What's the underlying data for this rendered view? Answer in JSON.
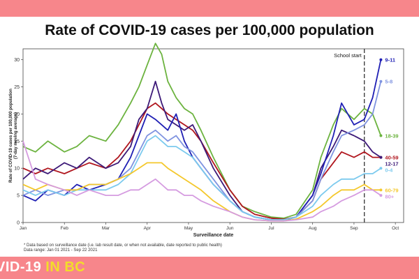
{
  "title": "Rate of COVID-19 cases per 100,000 population",
  "footnotes": [
    "* Data based on surveillance date (i.e. lab result date, or when not available, date reported to public health)",
    "Data range: Jan 01 2021 - Sep 22 2021"
  ],
  "brand": {
    "prefix": "VID-19",
    "suffix": " IN BC"
  },
  "colors": {
    "band": "#f7868b",
    "brand_accent": "#f2dd2a"
  },
  "chart_data": {
    "type": "line",
    "title": "Rate of COVID-19 cases per 100,000 population",
    "xlabel": "Surveillance date",
    "ylabel_lines": [
      "Rate of COVID-19 cases per 100,000 population",
      "(7-day moving average)"
    ],
    "xlim": [
      0,
      9.2
    ],
    "ylim": [
      0,
      32
    ],
    "yticks": [
      0,
      5,
      10,
      15,
      20,
      25,
      30
    ],
    "month_ticks": [
      {
        "label": "Jan",
        "x": 0
      },
      {
        "label": "Feb",
        "x": 1
      },
      {
        "label": "Mar",
        "x": 2
      },
      {
        "label": "Apr",
        "x": 3
      },
      {
        "label": "May",
        "x": 4
      },
      {
        "label": "Jun",
        "x": 5
      },
      {
        "label": "Jul",
        "x": 6
      },
      {
        "label": "Aug",
        "x": 7
      },
      {
        "label": "Sep",
        "x": 8
      },
      {
        "label": "Oct",
        "x": 9
      }
    ],
    "annotation": {
      "label": "School start",
      "x": 8.25
    },
    "series": [
      {
        "name": "18-39",
        "color": "#6cb33f",
        "label": "18-39",
        "x": [
          0,
          0.3,
          0.6,
          1,
          1.3,
          1.6,
          2,
          2.3,
          2.6,
          2.8,
          3,
          3.2,
          3.35,
          3.5,
          3.7,
          3.9,
          4.1,
          4.3,
          4.6,
          5,
          5.3,
          5.6,
          6,
          6.3,
          6.6,
          7,
          7.2,
          7.5,
          7.7,
          8,
          8.25,
          8.45,
          8.65
        ],
        "values": [
          14,
          13,
          15,
          13,
          14,
          16,
          15,
          18,
          22,
          25,
          29,
          33,
          31,
          26,
          23,
          21,
          20,
          17,
          12,
          6,
          3,
          2,
          1,
          0.8,
          1.5,
          6,
          12,
          18,
          21,
          19,
          21,
          20,
          16
        ]
      },
      {
        "name": "40-59",
        "color": "#b0161e",
        "label": "40-59",
        "x": [
          0,
          0.3,
          0.6,
          1,
          1.3,
          1.6,
          2,
          2.3,
          2.6,
          2.8,
          3,
          3.2,
          3.35,
          3.5,
          3.7,
          3.9,
          4.1,
          4.3,
          4.6,
          5,
          5.3,
          5.6,
          6,
          6.3,
          6.6,
          7,
          7.2,
          7.5,
          7.7,
          8,
          8.25,
          8.45,
          8.65
        ],
        "values": [
          10,
          9,
          10,
          9,
          10,
          11,
          10,
          12,
          15,
          18,
          21,
          22,
          21,
          20,
          19,
          18,
          17,
          15,
          11,
          6,
          3,
          1.5,
          0.8,
          0.6,
          1,
          4,
          8,
          11,
          13,
          12,
          13,
          12,
          12
        ]
      },
      {
        "name": "12-17",
        "color": "#3d1a78",
        "label": "12-17",
        "x": [
          0,
          0.3,
          0.6,
          1,
          1.3,
          1.6,
          2,
          2.3,
          2.6,
          2.8,
          3,
          3.2,
          3.35,
          3.5,
          3.7,
          3.9,
          4.1,
          4.3,
          4.6,
          5,
          5.3,
          5.6,
          6,
          6.3,
          6.6,
          7,
          7.2,
          7.5,
          7.7,
          8,
          8.25,
          8.45,
          8.65
        ],
        "values": [
          8,
          10,
          9,
          11,
          10,
          12,
          10,
          11,
          14,
          19,
          21,
          26,
          22,
          19,
          18,
          17,
          18,
          15,
          10,
          5,
          2,
          1,
          0.5,
          0.4,
          1,
          5,
          10,
          14,
          17,
          16,
          15,
          13,
          12
        ]
      },
      {
        "name": "9-11",
        "color": "#1f1fb4",
        "label": "9-11",
        "x": [
          0,
          0.3,
          0.6,
          1,
          1.3,
          1.6,
          2,
          2.3,
          2.6,
          2.8,
          3,
          3.2,
          3.35,
          3.5,
          3.7,
          3.9,
          4.1,
          4.3,
          4.6,
          5,
          5.3,
          5.6,
          6,
          6.3,
          6.6,
          7,
          7.2,
          7.5,
          7.7,
          8,
          8.25,
          8.45,
          8.65
        ],
        "values": [
          5,
          4,
          6,
          5,
          7,
          6,
          7,
          8,
          12,
          16,
          20,
          19,
          18,
          17,
          20,
          15,
          12,
          10,
          7,
          4,
          2,
          1,
          0.5,
          0.5,
          1,
          5,
          9,
          16,
          22,
          18,
          19,
          23,
          30
        ]
      },
      {
        "name": "5-8",
        "color": "#7f93e0",
        "label": "5-8",
        "x": [
          0,
          0.3,
          0.6,
          1,
          1.3,
          1.6,
          2,
          2.3,
          2.6,
          2.8,
          3,
          3.2,
          3.35,
          3.5,
          3.7,
          3.9,
          4.1,
          4.3,
          4.6,
          5,
          5.3,
          5.6,
          6,
          6.3,
          6.6,
          7,
          7.2,
          7.5,
          7.7,
          8,
          8.25,
          8.45,
          8.65
        ],
        "values": [
          5,
          6,
          5,
          6,
          6,
          7,
          7,
          8,
          10,
          13,
          16,
          17,
          16,
          15,
          16,
          14,
          13,
          11,
          8,
          4,
          2,
          1,
          0.5,
          0.5,
          1,
          4,
          8,
          13,
          16,
          17,
          18,
          20,
          26
        ]
      },
      {
        "name": "0-4",
        "color": "#7ccaee",
        "label": "0-4",
        "x": [
          0,
          0.3,
          0.6,
          1,
          1.3,
          1.6,
          2,
          2.3,
          2.6,
          2.8,
          3,
          3.2,
          3.35,
          3.5,
          3.7,
          3.9,
          4.1,
          4.3,
          4.6,
          5,
          5.3,
          5.6,
          6,
          6.3,
          6.6,
          7,
          7.2,
          7.5,
          7.7,
          8,
          8.25,
          8.45,
          8.65
        ],
        "values": [
          6,
          5,
          6,
          5,
          6,
          6,
          6,
          7,
          9,
          12,
          15,
          16,
          15,
          14,
          14,
          13,
          12,
          10,
          7,
          4,
          2,
          1,
          0.5,
          0.5,
          1,
          3,
          5,
          7,
          8,
          8,
          9,
          9,
          10
        ]
      },
      {
        "name": "60-79",
        "color": "#f4c82c",
        "label": "60-79",
        "x": [
          0,
          0.3,
          0.6,
          1,
          1.3,
          1.6,
          2,
          2.3,
          2.6,
          2.8,
          3,
          3.2,
          3.35,
          3.5,
          3.7,
          3.9,
          4.1,
          4.3,
          4.6,
          5,
          5.3,
          5.6,
          6,
          6.3,
          6.6,
          7,
          7.2,
          7.5,
          7.7,
          8,
          8.25,
          8.45,
          8.65
        ],
        "values": [
          7,
          6,
          7,
          6,
          6,
          7,
          7,
          8,
          9,
          10,
          11,
          11,
          11,
          10,
          9,
          8,
          7,
          6,
          4,
          2,
          1,
          0.5,
          0.3,
          0.3,
          0.6,
          2,
          3,
          5,
          6,
          6,
          7,
          6,
          6
        ]
      },
      {
        "name": "80+",
        "color": "#d59be0",
        "label": "80+",
        "x": [
          0,
          0.3,
          0.6,
          1,
          1.3,
          1.6,
          2,
          2.3,
          2.6,
          2.8,
          3,
          3.2,
          3.35,
          3.5,
          3.7,
          3.9,
          4.1,
          4.3,
          4.6,
          5,
          5.3,
          5.6,
          6,
          6.3,
          6.6,
          7,
          7.2,
          7.5,
          7.7,
          8,
          8.25,
          8.45,
          8.65
        ],
        "values": [
          15,
          8,
          7,
          6,
          5,
          6,
          5,
          5,
          6,
          6,
          7,
          8,
          7,
          6,
          6,
          5,
          5,
          4,
          3,
          2,
          1,
          0.5,
          0.3,
          0.3,
          0.5,
          1,
          2,
          3,
          4,
          5,
          6,
          6,
          5
        ]
      }
    ]
  }
}
